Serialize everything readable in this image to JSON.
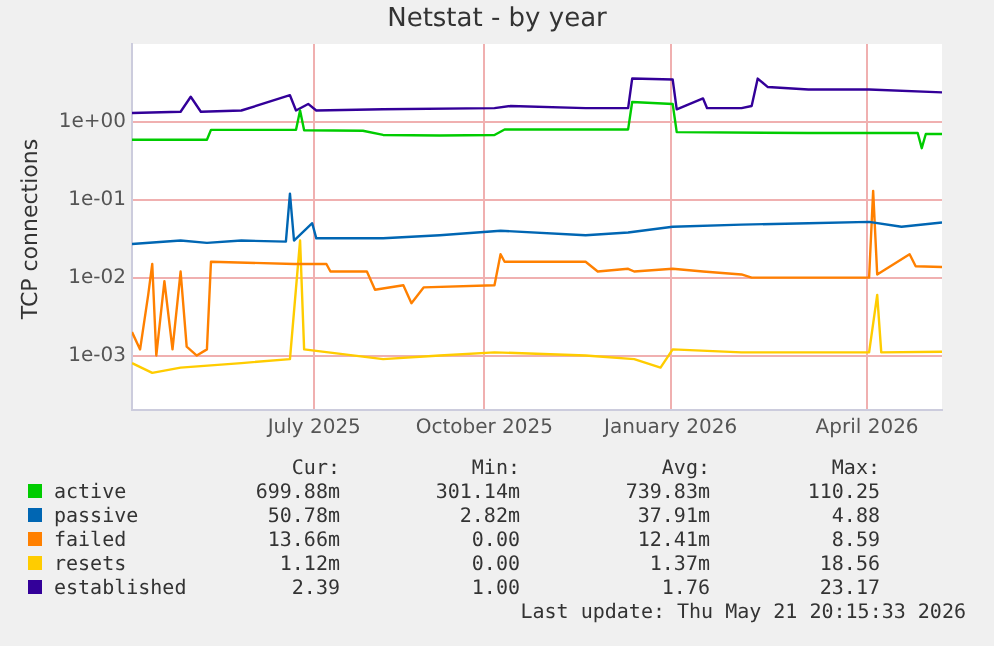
{
  "chart_data": {
    "type": "line",
    "title": "Netstat - by year",
    "ylabel": "TCP connections",
    "log": "y",
    "grid": true,
    "legend": "bottom",
    "marker": "none",
    "line_style": "solid",
    "xlim": [
      "2025-04-16",
      "2026-05-21"
    ],
    "xticks": [
      {
        "value": "2025-07-15",
        "label": "July 2025"
      },
      {
        "value": "2025-10-07",
        "label": "October 2025"
      },
      {
        "value": "2026-01-07",
        "label": "January 2026"
      },
      {
        "value": "2026-04-14",
        "label": "April 2026"
      }
    ],
    "ylim": [
      0.0002,
      10
    ],
    "yticks": [
      {
        "value": 0.001,
        "label": "1e-03"
      },
      {
        "value": 0.01,
        "label": "1e-02"
      },
      {
        "value": 0.1,
        "label": "1e-01"
      },
      {
        "value": 1,
        "label": "1e+00"
      }
    ],
    "series": [
      {
        "name": "active",
        "color": "#00cc00",
        "x": [
          "2025-04-16",
          "2025-05-23",
          "2025-05-25",
          "2025-07-06",
          "2025-07-08",
          "2025-07-10",
          "2025-08-08",
          "2025-08-18",
          "2025-09-15",
          "2025-10-12",
          "2025-10-17",
          "2025-12-17",
          "2025-12-19",
          "2026-01-08",
          "2026-01-10",
          "2026-03-16",
          "2026-05-09",
          "2026-05-11",
          "2026-05-13",
          "2026-05-21"
        ],
        "values": [
          0.59,
          0.59,
          0.79,
          0.79,
          1.4,
          0.78,
          0.77,
          0.68,
          0.67,
          0.68,
          0.8,
          0.8,
          1.8,
          1.7,
          0.74,
          0.72,
          0.72,
          0.46,
          0.7,
          0.7
        ]
      },
      {
        "name": "passive",
        "color": "#0066b3",
        "x": [
          "2025-04-16",
          "2025-05-10",
          "2025-05-23",
          "2025-06-09",
          "2025-07-01",
          "2025-07-03",
          "2025-07-05",
          "2025-07-14",
          "2025-07-16",
          "2025-08-18",
          "2025-09-15",
          "2025-10-15",
          "2025-11-26",
          "2025-12-17",
          "2026-01-08",
          "2026-02-11",
          "2026-03-16",
          "2026-04-15",
          "2026-05-01",
          "2026-05-21"
        ],
        "values": [
          0.027,
          0.03,
          0.028,
          0.03,
          0.029,
          0.12,
          0.03,
          0.05,
          0.032,
          0.032,
          0.035,
          0.04,
          0.035,
          0.038,
          0.045,
          0.048,
          0.05,
          0.052,
          0.045,
          0.051
        ]
      },
      {
        "name": "failed",
        "color": "#ff8000",
        "x": [
          "2025-04-16",
          "2025-04-20",
          "2025-04-24",
          "2025-04-26",
          "2025-04-28",
          "2025-05-02",
          "2025-05-06",
          "2025-05-10",
          "2025-05-13",
          "2025-05-18",
          "2025-05-23",
          "2025-05-25",
          "2025-07-05",
          "2025-07-21",
          "2025-07-23",
          "2025-08-10",
          "2025-08-14",
          "2025-08-28",
          "2025-09-01",
          "2025-09-07",
          "2025-10-12",
          "2025-10-15",
          "2025-10-17",
          "2025-11-26",
          "2025-12-02",
          "2025-12-17",
          "2025-12-20",
          "2026-01-08",
          "2026-01-23",
          "2026-02-11",
          "2026-02-16",
          "2026-04-15",
          "2026-04-17",
          "2026-04-19",
          "2026-05-05",
          "2026-05-08",
          "2026-05-21"
        ],
        "values": [
          0.002,
          0.0012,
          0.006,
          0.015,
          0.001,
          0.009,
          0.0012,
          0.012,
          0.0013,
          0.001,
          0.0012,
          0.016,
          0.015,
          0.015,
          0.012,
          0.012,
          0.007,
          0.008,
          0.0047,
          0.0075,
          0.008,
          0.02,
          0.016,
          0.016,
          0.012,
          0.013,
          0.012,
          0.013,
          0.012,
          0.011,
          0.01,
          0.01,
          0.13,
          0.011,
          0.02,
          0.014,
          0.0137
        ]
      },
      {
        "name": "resets",
        "color": "#ffcc00",
        "x": [
          "2025-04-16",
          "2025-04-26",
          "2025-05-10",
          "2025-06-09",
          "2025-07-03",
          "2025-07-08",
          "2025-07-10",
          "2025-08-18",
          "2025-09-15",
          "2025-10-12",
          "2025-11-26",
          "2025-12-20",
          "2026-01-02",
          "2026-01-08",
          "2026-02-11",
          "2026-04-15",
          "2026-04-19",
          "2026-04-21",
          "2026-05-21"
        ],
        "values": [
          0.0008,
          0.0006,
          0.0007,
          0.0008,
          0.0009,
          0.03,
          0.0012,
          0.0009,
          0.001,
          0.0011,
          0.001,
          0.0009,
          0.0007,
          0.0012,
          0.0011,
          0.0011,
          0.006,
          0.0011,
          0.00112
        ]
      },
      {
        "name": "established",
        "color": "#330099",
        "x": [
          "2025-04-16",
          "2025-05-10",
          "2025-05-15",
          "2025-05-20",
          "2025-06-09",
          "2025-07-03",
          "2025-07-06",
          "2025-07-12",
          "2025-07-16",
          "2025-08-18",
          "2025-10-12",
          "2025-10-20",
          "2025-11-26",
          "2025-12-17",
          "2025-12-19",
          "2026-01-08",
          "2026-01-10",
          "2026-01-23",
          "2026-01-25",
          "2026-02-11",
          "2026-02-16",
          "2026-02-19",
          "2026-02-24",
          "2026-03-16",
          "2026-04-15",
          "2026-05-21"
        ],
        "values": [
          1.3,
          1.35,
          2.1,
          1.35,
          1.4,
          2.2,
          1.4,
          1.7,
          1.4,
          1.45,
          1.5,
          1.6,
          1.5,
          1.5,
          3.6,
          3.5,
          1.45,
          2.0,
          1.5,
          1.5,
          1.6,
          3.6,
          2.8,
          2.6,
          2.6,
          2.39
        ]
      }
    ],
    "annotations": [
      "Cur:",
      "Min:",
      "Avg:",
      "Max:",
      "699.88m",
      "301.14m",
      "739.83m",
      "110.25",
      "50.78m",
      "2.82m",
      "37.91m",
      "4.88",
      "13.66m",
      "0.00",
      "12.41m",
      "8.59",
      "1.12m",
      "0.00",
      "1.37m",
      "18.56",
      "2.39",
      "1.00",
      "1.76",
      "23.17",
      "Last update: Thu May 21 20:15:33 2026"
    ]
  }
}
